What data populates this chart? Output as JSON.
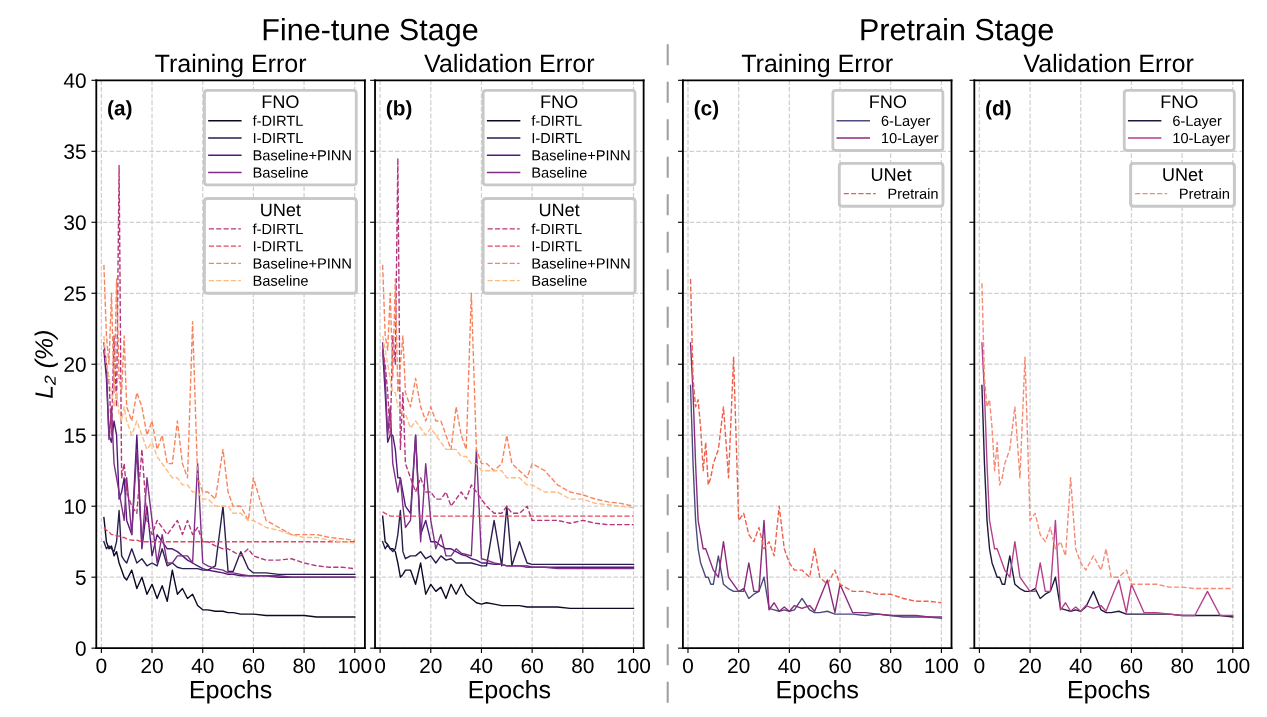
{
  "chart_data": [
    {
      "type": "line",
      "title": "Training Error",
      "xlabel": "Epochs",
      "ylabel": "L₂ (%)",
      "annotations": [
        "(a)",
        "FNO",
        "UNet",
        "Fine-tune Stage"
      ],
      "xlim": [
        -2,
        104
      ],
      "ylim": [
        0,
        40
      ],
      "xticks": [
        0,
        20,
        40,
        60,
        80,
        100
      ],
      "yticks": [
        0,
        5,
        10,
        15,
        20,
        25,
        30,
        35,
        40
      ],
      "grid": true,
      "legend": "top right",
      "x": [
        1,
        2,
        3,
        4,
        5,
        6,
        7,
        8,
        9,
        10,
        12,
        14,
        16,
        18,
        20,
        22,
        24,
        26,
        28,
        30,
        32,
        34,
        36,
        38,
        40,
        42,
        45,
        48,
        50,
        52,
        55,
        58,
        60,
        65,
        70,
        75,
        80,
        85,
        90,
        95,
        100
      ],
      "series": [
        {
          "name": "f-DIRTL",
          "color": "#0b0924",
          "line_style": "solid",
          "values": [
            9.2,
            7.5,
            7,
            7.2,
            6.5,
            6.8,
            6,
            5.5,
            5,
            4.8,
            5.5,
            4.2,
            5,
            3.8,
            4.5,
            3.5,
            4.4,
            3.3,
            5.5,
            3.8,
            4.2,
            3.5,
            3.8,
            3,
            2.7,
            2.7,
            2.6,
            2.6,
            2.5,
            2.5,
            2.4,
            2.4,
            2.4,
            2.3,
            2.3,
            2.3,
            2.3,
            2.2,
            2.2,
            2.2,
            2.2
          ]
        },
        {
          "name": "I-DIRTL",
          "color": "#2a1d4f",
          "line_style": "solid",
          "values": [
            7.5,
            7,
            7.2,
            7,
            6.8,
            7.5,
            9.7,
            6.5,
            6.2,
            6,
            7,
            6,
            6.3,
            5.8,
            6,
            5.8,
            7,
            5.8,
            6,
            5.7,
            5.6,
            5.6,
            5.6,
            5.6,
            5.5,
            5.5,
            5.8,
            10,
            5.4,
            5.4,
            6.8,
            5.6,
            5.3,
            5.3,
            5.2,
            5.2,
            5.2,
            5.2,
            5.2,
            5.2,
            5.2
          ]
        },
        {
          "name": "Baseline+PINN",
          "color": "#52197a",
          "line_style": "solid",
          "values": [
            21,
            19,
            15,
            14.5,
            16,
            15,
            10.5,
            11,
            12,
            9,
            8,
            15,
            7,
            10,
            6.5,
            8,
            7.5,
            7,
            7,
            6.8,
            6.5,
            6.2,
            6,
            5.8,
            5.6,
            5.5,
            5.4,
            5.3,
            5.2,
            5.2,
            5.1,
            5.1,
            5.1,
            5.1,
            5,
            5,
            5,
            5,
            5,
            5,
            5
          ]
        },
        {
          "name": "Baseline",
          "color": "#7e2e86",
          "line_style": "solid",
          "values": [
            21.5,
            20,
            14.7,
            17,
            13,
            12,
            11,
            10,
            9,
            12,
            8,
            14,
            7.2,
            12,
            9,
            6,
            8,
            6,
            6,
            6.5,
            6.5,
            6.5,
            6,
            13,
            6,
            5.8,
            5.6,
            5.5,
            5.3,
            5.3,
            5.2,
            5.1,
            5.1,
            5.1,
            5.1,
            5,
            5,
            5,
            5,
            5,
            5
          ]
        },
        {
          "name": "f-DIRTL",
          "color": "#b5367a",
          "line_style": "dashed",
          "values": [
            21,
            20,
            19,
            15,
            22,
            17,
            34,
            12,
            13,
            11,
            10,
            9.5,
            14,
            9,
            8,
            9,
            8.5,
            8,
            8.5,
            9,
            8,
            9,
            8,
            8.5,
            7.5,
            7.5,
            7.2,
            7,
            7,
            6.8,
            6.5,
            7,
            6.5,
            6.2,
            6.2,
            6.3,
            6,
            5.8,
            5.7,
            5.7,
            5.6
          ]
        },
        {
          "name": "I-DIRTL",
          "color": "#e2495f",
          "line_style": "dashed",
          "values": [
            8.5,
            8.3,
            8.2,
            8,
            8,
            7.9,
            7.9,
            7.8,
            7.8,
            7.7,
            7.6,
            7.6,
            7.5,
            7.5,
            7.5,
            7.5,
            7.5,
            7.5,
            7.5,
            7.5,
            7.5,
            7.5,
            7.5,
            7.5,
            7.5,
            7.5,
            7.5,
            7.5,
            7.5,
            7.5,
            7.5,
            7.5,
            7.5,
            7.5,
            7.5,
            7.5,
            7.5,
            7.5,
            7.5,
            7.5,
            7.5
          ]
        },
        {
          "name": "Baseline+PINN",
          "color": "#f8845f",
          "line_style": "dashed",
          "values": [
            27,
            22,
            20,
            25,
            18,
            26,
            19,
            18,
            22,
            17,
            16,
            18,
            17,
            15,
            16,
            14,
            15,
            13,
            13,
            16,
            13,
            12,
            23,
            12,
            11,
            11,
            10.5,
            14,
            11,
            10,
            10,
            9,
            12,
            9,
            8.5,
            8,
            8,
            8,
            7.8,
            7.7,
            7.6
          ]
        },
        {
          "name": "Baseline",
          "color": "#fdbb80",
          "line_style": "dashed",
          "values": [
            22,
            20,
            19,
            18,
            17,
            18,
            16.5,
            16,
            17,
            16,
            15,
            16,
            15,
            14,
            14.5,
            13.5,
            13,
            12.5,
            12,
            12,
            11.5,
            11.5,
            11,
            11,
            10.5,
            10.5,
            10,
            10,
            10,
            9.5,
            9.5,
            9,
            9,
            8.5,
            8.3,
            8,
            7.8,
            7.8,
            7.6,
            7.5,
            7.4
          ]
        }
      ]
    },
    {
      "type": "line",
      "title": "Validation Error",
      "xlabel": "Epochs",
      "annotations": [
        "(b)",
        "FNO",
        "UNet"
      ],
      "xlim": [
        -2,
        104
      ],
      "ylim": [
        0,
        40
      ],
      "xticks": [
        0,
        20,
        40,
        60,
        80,
        100
      ],
      "yticks": [
        0,
        5,
        10,
        15,
        20,
        25,
        30,
        35,
        40
      ],
      "tick_labels": "x",
      "grid": true,
      "legend": "top right",
      "x": [
        1,
        2,
        3,
        4,
        5,
        6,
        7,
        8,
        9,
        10,
        12,
        14,
        16,
        18,
        20,
        22,
        24,
        26,
        28,
        30,
        32,
        34,
        36,
        38,
        40,
        42,
        45,
        48,
        50,
        52,
        55,
        58,
        60,
        65,
        70,
        75,
        80,
        85,
        90,
        95,
        100
      ],
      "series": [
        {
          "name": "f-DIRTL",
          "color": "#0b0924",
          "line_style": "solid",
          "values": [
            9.3,
            7.5,
            7.3,
            7,
            7,
            6.8,
            6,
            5,
            5.2,
            5.5,
            5.5,
            4.5,
            6,
            3.8,
            4.5,
            4,
            4.3,
            3.5,
            4.5,
            3.8,
            4.5,
            3.8,
            3.5,
            3.2,
            3.1,
            3.2,
            3.1,
            3,
            3,
            3,
            3,
            2.9,
            2.9,
            2.9,
            2.9,
            2.8,
            2.8,
            2.8,
            2.8,
            2.8,
            2.8
          ]
        },
        {
          "name": "I-DIRTL",
          "color": "#2a1d4f",
          "line_style": "solid",
          "values": [
            7.5,
            7,
            7.3,
            7,
            6.8,
            7,
            8,
            9.7,
            6.8,
            6.3,
            6.5,
            6.5,
            6.8,
            6.3,
            6.5,
            6,
            6.5,
            6.2,
            6.3,
            6,
            6,
            6,
            6,
            5.9,
            5.8,
            5.8,
            9,
            5.8,
            10,
            5.8,
            7.5,
            6,
            5.9,
            5.9,
            5.9,
            5.9,
            5.9,
            5.9,
            5.9,
            5.9,
            5.9
          ]
        },
        {
          "name": "Baseline+PINN",
          "color": "#52197a",
          "line_style": "solid",
          "values": [
            21,
            18,
            14.5,
            15,
            15,
            14,
            12,
            12,
            11,
            10,
            9.5,
            15,
            8,
            9,
            7.5,
            7.5,
            7.2,
            7,
            7,
            6.8,
            6.6,
            6.5,
            6.3,
            6.2,
            6,
            6,
            5.9,
            5.9,
            5.8,
            5.8,
            5.8,
            5.8,
            5.7,
            5.7,
            5.7,
            5.7,
            5.7,
            5.7,
            5.7,
            5.7,
            5.7
          ]
        },
        {
          "name": "Baseline",
          "color": "#7e2e86",
          "line_style": "solid",
          "values": [
            21.5,
            19,
            15,
            17,
            13,
            12,
            11,
            12,
            10,
            8.5,
            9,
            15,
            7.5,
            13,
            9,
            7,
            8,
            6.5,
            6.5,
            7,
            6.7,
            6.6,
            6.5,
            14,
            6.3,
            6.2,
            6,
            5.9,
            5.8,
            5.8,
            5.8,
            5.7,
            5.7,
            5.7,
            5.6,
            5.6,
            5.6,
            5.6,
            5.6,
            5.6,
            5.6
          ]
        },
        {
          "name": "f-DIRTL",
          "color": "#b5367a",
          "line_style": "dashed",
          "values": [
            21,
            20,
            18,
            15,
            22,
            20,
            34.5,
            14,
            18,
            13,
            12,
            11,
            12,
            11,
            11,
            10.5,
            10.5,
            11,
            10,
            10.5,
            11,
            10.5,
            11.5,
            11,
            10.5,
            10,
            9.5,
            9.5,
            10,
            9.5,
            9.5,
            10,
            9,
            9,
            9,
            8.8,
            9,
            8.8,
            8.7,
            8.7,
            8.7
          ]
        },
        {
          "name": "I-DIRTL",
          "color": "#e2495f",
          "line_style": "dashed",
          "values": [
            9.6,
            9.5,
            9.4,
            9.3,
            9.3,
            9.3,
            9.3,
            9.3,
            9.3,
            9.3,
            9.3,
            9.3,
            9.3,
            9.3,
            9.3,
            9.3,
            9.3,
            9.3,
            9.3,
            9.3,
            9.3,
            9.3,
            9.3,
            9.3,
            9.3,
            9.3,
            9.3,
            9.3,
            9.3,
            9.3,
            9.3,
            9.3,
            9.3,
            9.3,
            9.3,
            9.3,
            9.3,
            9.3,
            9.3,
            9.3,
            9.3
          ]
        },
        {
          "name": "Baseline+PINN",
          "color": "#f8845f",
          "line_style": "dashed",
          "values": [
            27,
            22,
            21,
            25,
            19,
            26,
            18,
            20,
            22,
            18,
            17,
            19,
            17,
            16,
            17,
            16,
            16,
            15,
            14,
            17,
            15,
            14,
            25,
            14,
            13,
            13,
            12.5,
            13,
            15,
            13,
            12.5,
            12,
            13,
            12.5,
            11.5,
            11,
            10.8,
            10.5,
            10.3,
            10.2,
            10
          ]
        },
        {
          "name": "Baseline",
          "color": "#fdbb80",
          "line_style": "dashed",
          "values": [
            22,
            21,
            20,
            19,
            18,
            18,
            17,
            17,
            16.5,
            16.5,
            15.5,
            16,
            15.5,
            15,
            15.5,
            15,
            14.5,
            14,
            14,
            14,
            13.5,
            13.5,
            13,
            13,
            12.5,
            12.5,
            12.5,
            12.5,
            12,
            12,
            12,
            11.5,
            11.5,
            11,
            11,
            10.5,
            10.5,
            10.2,
            10.1,
            10,
            9.9
          ]
        }
      ]
    },
    {
      "type": "line",
      "title": "Training Error",
      "xlabel": "Epochs",
      "annotations": [
        "(c)",
        "FNO",
        "UNet",
        "Pretrain Stage"
      ],
      "xlim": [
        -2,
        104
      ],
      "ylim": [
        0,
        40
      ],
      "xticks": [
        0,
        20,
        40,
        60,
        80,
        100
      ],
      "yticks": [
        0,
        5,
        10,
        15,
        20,
        25,
        30,
        35,
        40
      ],
      "tick_labels": "x",
      "grid": true,
      "legend": "top right",
      "x": [
        1,
        2,
        3,
        4,
        5,
        6,
        7,
        8,
        9,
        10,
        12,
        14,
        16,
        18,
        20,
        22,
        24,
        26,
        28,
        30,
        32,
        34,
        36,
        38,
        40,
        42,
        45,
        48,
        50,
        52,
        55,
        58,
        60,
        65,
        70,
        75,
        80,
        85,
        90,
        95,
        100
      ],
      "series": [
        {
          "name": "6-Layer",
          "color": "#4a4a7c",
          "line_style": "solid",
          "values": [
            18.5,
            13,
            9,
            7,
            6,
            5.5,
            5,
            5,
            4.5,
            4.5,
            6.5,
            4.5,
            4.2,
            4,
            4,
            4.2,
            3.5,
            3.8,
            4,
            5,
            2.8,
            2.7,
            2.6,
            2.7,
            2.6,
            2.7,
            3.5,
            2.7,
            2.5,
            2.5,
            2.6,
            2.4,
            2.4,
            2.4,
            2.3,
            2.4,
            2.3,
            2.2,
            2.2,
            2.2,
            2.1
          ]
        },
        {
          "name": "10-Layer",
          "color": "#8c2a7c",
          "line_style": "solid",
          "values": [
            21.5,
            18,
            13,
            9,
            8,
            7,
            7,
            6.5,
            6,
            5.5,
            5,
            7.5,
            5,
            4.5,
            4,
            4,
            6,
            4,
            4,
            9,
            2.7,
            3.2,
            2.6,
            2.9,
            2.6,
            3,
            2.8,
            3,
            2.6,
            3.5,
            4.8,
            2.5,
            4.5,
            2.5,
            2.5,
            2.4,
            2.3,
            2.3,
            2.3,
            2.2,
            2.2
          ]
        },
        {
          "name": "Pretrain",
          "color": "#ef5f4d",
          "line_style": "dashed",
          "values": [
            26,
            19,
            17,
            17.5,
            15.5,
            12.5,
            14.5,
            11.5,
            12,
            13,
            14,
            17,
            12,
            20.5,
            9,
            9.5,
            8,
            7.5,
            8.5,
            7,
            7.5,
            6.5,
            10,
            7,
            6,
            5.5,
            5.5,
            5,
            7,
            5,
            4.5,
            5.5,
            4.5,
            4,
            4,
            3.8,
            3.8,
            3.5,
            3.3,
            3.3,
            3.2
          ]
        }
      ]
    },
    {
      "type": "line",
      "title": "Validation Error",
      "xlabel": "Epochs",
      "annotations": [
        "(d)",
        "FNO",
        "UNet"
      ],
      "xlim": [
        -2,
        104
      ],
      "ylim": [
        0,
        40
      ],
      "xticks": [
        0,
        20,
        40,
        60,
        80,
        100
      ],
      "yticks": [
        0,
        5,
        10,
        15,
        20,
        25,
        30,
        35,
        40
      ],
      "tick_labels": "x",
      "grid": true,
      "legend": "top right",
      "x": [
        1,
        2,
        3,
        4,
        5,
        6,
        7,
        8,
        9,
        10,
        12,
        14,
        16,
        18,
        20,
        22,
        24,
        26,
        28,
        30,
        32,
        34,
        36,
        38,
        40,
        42,
        45,
        48,
        50,
        52,
        55,
        58,
        60,
        65,
        70,
        75,
        80,
        85,
        90,
        95,
        100
      ],
      "series": [
        {
          "name": "6-Layer",
          "color": "#1c1a3e",
          "line_style": "solid",
          "values": [
            18.5,
            13,
            9,
            7,
            6,
            5.5,
            5,
            5,
            4.5,
            4.5,
            6.5,
            4.5,
            4.2,
            4,
            4,
            4.2,
            3.5,
            3.8,
            4,
            5,
            2.8,
            2.7,
            2.6,
            2.7,
            2.6,
            2.9,
            4,
            2.7,
            2.5,
            2.5,
            2.6,
            2.4,
            2.4,
            2.4,
            2.4,
            2.4,
            2.3,
            2.3,
            2.3,
            2.3,
            2.2
          ]
        },
        {
          "name": "10-Layer",
          "color": "#b5408a",
          "line_style": "solid",
          "values": [
            21.5,
            18,
            13,
            9,
            8,
            7,
            7,
            6.5,
            6,
            5.5,
            5,
            7.5,
            5,
            4.5,
            4,
            4,
            6,
            4,
            4,
            9,
            2.7,
            3.2,
            2.6,
            2.9,
            2.6,
            3,
            2.8,
            3,
            2.6,
            3.5,
            4.8,
            2.5,
            4.5,
            2.5,
            2.5,
            2.4,
            2.3,
            2.3,
            4,
            2.3,
            2.3
          ]
        },
        {
          "name": "Pretrain",
          "color": "#f68a75",
          "line_style": "dashed",
          "values": [
            25.7,
            19,
            17,
            17.5,
            15.5,
            12.5,
            14.5,
            11.5,
            12,
            13,
            14,
            17,
            12,
            20.5,
            9,
            9.5,
            8,
            7.5,
            8.5,
            7,
            7.5,
            6.5,
            12,
            7,
            6,
            5.5,
            6.5,
            5.5,
            7,
            5,
            5,
            5.5,
            4.5,
            4.5,
            4.5,
            4.3,
            4.3,
            4.2,
            4.2,
            4.2,
            4.2
          ]
        }
      ]
    }
  ]
}
